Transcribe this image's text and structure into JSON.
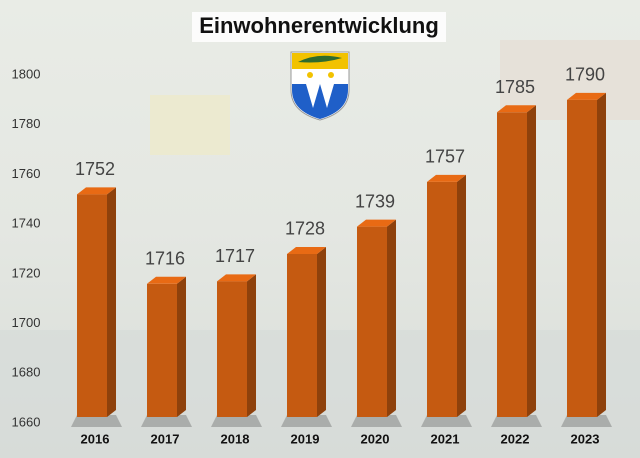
{
  "chart_data": {
    "type": "bar",
    "title": "Einwohnerentwicklung",
    "categories": [
      "2016",
      "2017",
      "2018",
      "2019",
      "2020",
      "2021",
      "2022",
      "2023"
    ],
    "values": [
      1752,
      1716,
      1717,
      1728,
      1739,
      1757,
      1785,
      1790
    ],
    "color": "#c55a11",
    "ylim": [
      1660,
      1800
    ],
    "yticks": [
      1660,
      1680,
      1700,
      1720,
      1740,
      1760,
      1780,
      1800
    ]
  }
}
